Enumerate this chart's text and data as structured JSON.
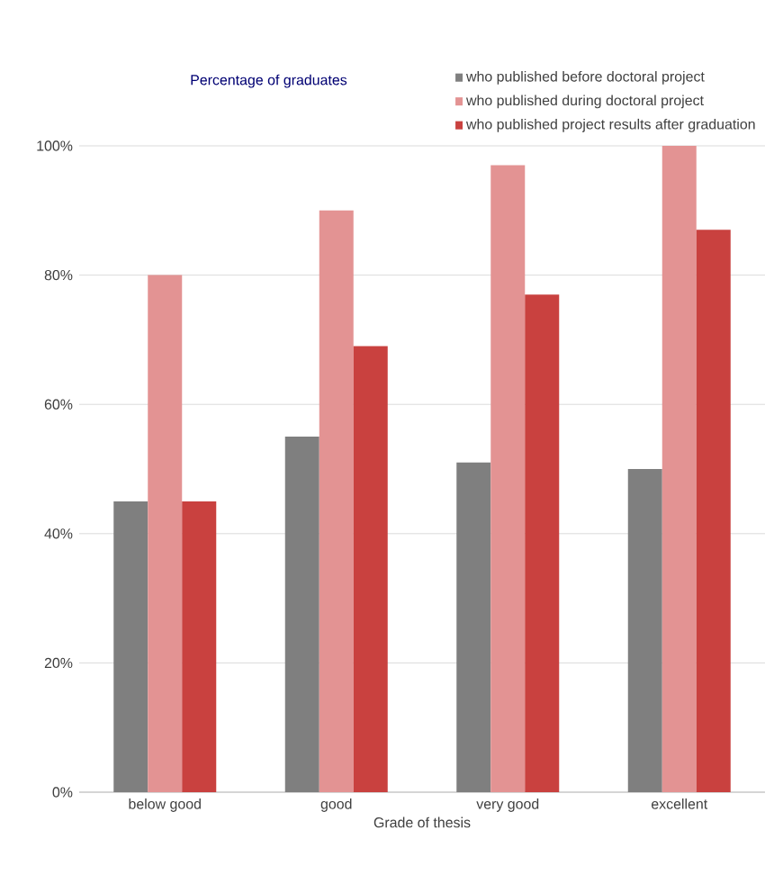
{
  "chart_data": {
    "type": "bar",
    "ylabel": "Percentage of graduates",
    "xlabel": "Grade of thesis",
    "categories": [
      "below good",
      "good",
      "very good",
      "excellent"
    ],
    "series": [
      {
        "name": "who published before doctoral project",
        "color": "#7f7f7f",
        "values": [
          45,
          55,
          51,
          50
        ]
      },
      {
        "name": "who published during doctoral project",
        "color": "#e39393",
        "values": [
          80,
          90,
          97,
          100
        ]
      },
      {
        "name": "who published project results after graduation",
        "color": "#c9413f",
        "values": [
          45,
          69,
          77,
          87
        ]
      }
    ],
    "ylim": [
      0,
      100
    ],
    "yticks": [
      {
        "value": 0,
        "label": "0%"
      },
      {
        "value": 20,
        "label": "20%"
      },
      {
        "value": 40,
        "label": "40%"
      },
      {
        "value": 60,
        "label": "60%"
      },
      {
        "value": 80,
        "label": "80%"
      },
      {
        "value": 100,
        "label": "100%"
      }
    ],
    "grid": "y",
    "legend": "top right"
  }
}
